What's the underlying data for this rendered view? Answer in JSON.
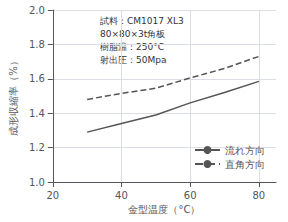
{
  "chart_data": {
    "type": "line",
    "xlabel": "金型温度（°C）",
    "ylabel": "成形収縮率（%）",
    "annotations": [
      "試料：CM1017 XL3",
      "80×80×3t角板",
      "樹脂温：250°C",
      "射出圧：50Mpa"
    ],
    "x": [
      30,
      40,
      50,
      60,
      70,
      80
    ],
    "series": [
      {
        "name": "流れ方向",
        "color": "#555555",
        "line_style": "solid",
        "values": [
          1.29,
          1.34,
          1.39,
          1.46,
          1.52,
          1.585
        ]
      },
      {
        "name": "直角方向",
        "color": "#555555",
        "line_style": "dashed",
        "values": [
          1.48,
          1.515,
          1.545,
          1.605,
          1.66,
          1.73
        ]
      }
    ],
    "xlim": [
      20,
      85
    ],
    "xticks": [
      20,
      40,
      60,
      80
    ],
    "ylim": [
      1.0,
      2.0
    ],
    "yticks": [
      {
        "value": 1.0,
        "label": "1.0"
      },
      1.2,
      1.4,
      1.6,
      1.8,
      {
        "value": 2.0,
        "label": "2.0"
      }
    ],
    "grid": true,
    "legend": "lower right"
  }
}
